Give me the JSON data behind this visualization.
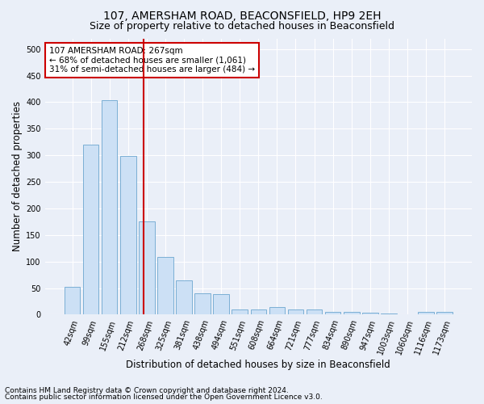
{
  "title1": "107, AMERSHAM ROAD, BEACONSFIELD, HP9 2EH",
  "title2": "Size of property relative to detached houses in Beaconsfield",
  "xlabel": "Distribution of detached houses by size in Beaconsfield",
  "ylabel": "Number of detached properties",
  "categories": [
    "42sqm",
    "99sqm",
    "155sqm",
    "212sqm",
    "268sqm",
    "325sqm",
    "381sqm",
    "438sqm",
    "494sqm",
    "551sqm",
    "608sqm",
    "664sqm",
    "721sqm",
    "777sqm",
    "834sqm",
    "890sqm",
    "947sqm",
    "1003sqm",
    "1060sqm",
    "1116sqm",
    "1173sqm"
  ],
  "values": [
    53,
    320,
    403,
    298,
    176,
    108,
    65,
    40,
    38,
    10,
    10,
    15,
    10,
    9,
    5,
    5,
    3,
    2,
    0,
    5,
    5
  ],
  "bar_color": "#cce0f5",
  "bar_edge_color": "#7bafd4",
  "vline_color": "#cc0000",
  "vline_x": 3.85,
  "annotation_text": "107 AMERSHAM ROAD: 267sqm\n← 68% of detached houses are smaller (1,061)\n31% of semi-detached houses are larger (484) →",
  "annotation_box_color": "#ffffff",
  "annotation_box_edge": "#cc0000",
  "footnote1": "Contains HM Land Registry data © Crown copyright and database right 2024.",
  "footnote2": "Contains public sector information licensed under the Open Government Licence v3.0.",
  "ylim": [
    0,
    520
  ],
  "yticks": [
    0,
    50,
    100,
    150,
    200,
    250,
    300,
    350,
    400,
    450,
    500
  ],
  "bg_color": "#eaeff8",
  "plot_bg_color": "#eaeff8",
  "grid_color": "#ffffff",
  "title1_fontsize": 10,
  "title2_fontsize": 9,
  "tick_fontsize": 7,
  "label_fontsize": 8.5,
  "annot_fontsize": 7.5,
  "footnote_fontsize": 6.5
}
